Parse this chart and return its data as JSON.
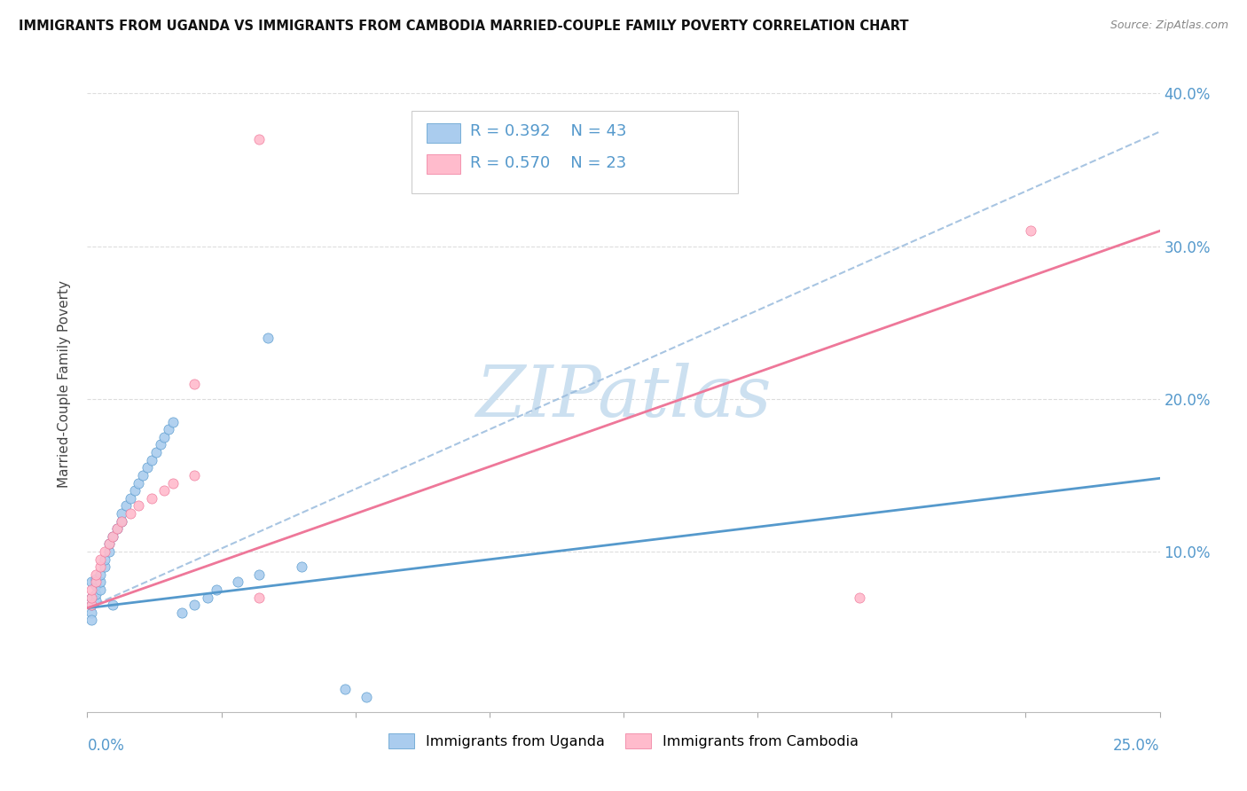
{
  "title": "IMMIGRANTS FROM UGANDA VS IMMIGRANTS FROM CAMBODIA MARRIED-COUPLE FAMILY POVERTY CORRELATION CHART",
  "source": "Source: ZipAtlas.com",
  "ylabel": "Married-Couple Family Poverty",
  "xlim": [
    0,
    0.25
  ],
  "ylim": [
    -0.005,
    0.425
  ],
  "color_uganda": "#aaccee",
  "color_cambodia": "#ffbbcc",
  "color_uganda_line": "#5599cc",
  "color_cambodia_line": "#ee7799",
  "color_dashed": "#99bbdd",
  "watermark_color": "#cce0f0",
  "axis_label_color": "#5599cc",
  "uganda_r": 0.392,
  "uganda_n": 43,
  "cambodia_r": 0.57,
  "cambodia_n": 23,
  "uganda_line_x0": 0.0,
  "uganda_line_y0": 0.063,
  "uganda_line_x1": 0.25,
  "uganda_line_y1": 0.148,
  "cambodia_line_x0": 0.0,
  "cambodia_line_y0": 0.063,
  "cambodia_line_x1": 0.25,
  "cambodia_line_y1": 0.31,
  "dashed_line_x0": 0.0,
  "dashed_line_y0": 0.063,
  "dashed_line_x1": 0.25,
  "dashed_line_y1": 0.375,
  "uganda_x": [
    0.001,
    0.001,
    0.001,
    0.001,
    0.001,
    0.002,
    0.002,
    0.002,
    0.002,
    0.003,
    0.003,
    0.003,
    0.004,
    0.004,
    0.005,
    0.005,
    0.006,
    0.006,
    0.007,
    0.008,
    0.008,
    0.009,
    0.01,
    0.011,
    0.012,
    0.013,
    0.014,
    0.015,
    0.016,
    0.017,
    0.018,
    0.019,
    0.02,
    0.022,
    0.025,
    0.028,
    0.03,
    0.035,
    0.04,
    0.042,
    0.05,
    0.06,
    0.065
  ],
  "uganda_y": [
    0.06,
    0.065,
    0.07,
    0.08,
    0.055,
    0.068,
    0.072,
    0.078,
    0.082,
    0.075,
    0.08,
    0.085,
    0.09,
    0.095,
    0.1,
    0.105,
    0.11,
    0.065,
    0.115,
    0.12,
    0.125,
    0.13,
    0.135,
    0.14,
    0.145,
    0.15,
    0.155,
    0.16,
    0.165,
    0.17,
    0.175,
    0.18,
    0.185,
    0.06,
    0.065,
    0.07,
    0.075,
    0.08,
    0.085,
    0.24,
    0.09,
    0.01,
    0.005
  ],
  "cambodia_x": [
    0.001,
    0.001,
    0.001,
    0.002,
    0.002,
    0.003,
    0.003,
    0.004,
    0.005,
    0.006,
    0.007,
    0.008,
    0.01,
    0.012,
    0.015,
    0.018,
    0.02,
    0.025,
    0.04,
    0.025,
    0.18,
    0.22,
    0.04
  ],
  "cambodia_y": [
    0.065,
    0.07,
    0.075,
    0.08,
    0.085,
    0.09,
    0.095,
    0.1,
    0.105,
    0.11,
    0.115,
    0.12,
    0.125,
    0.13,
    0.135,
    0.14,
    0.145,
    0.15,
    0.07,
    0.21,
    0.07,
    0.31,
    0.37
  ]
}
